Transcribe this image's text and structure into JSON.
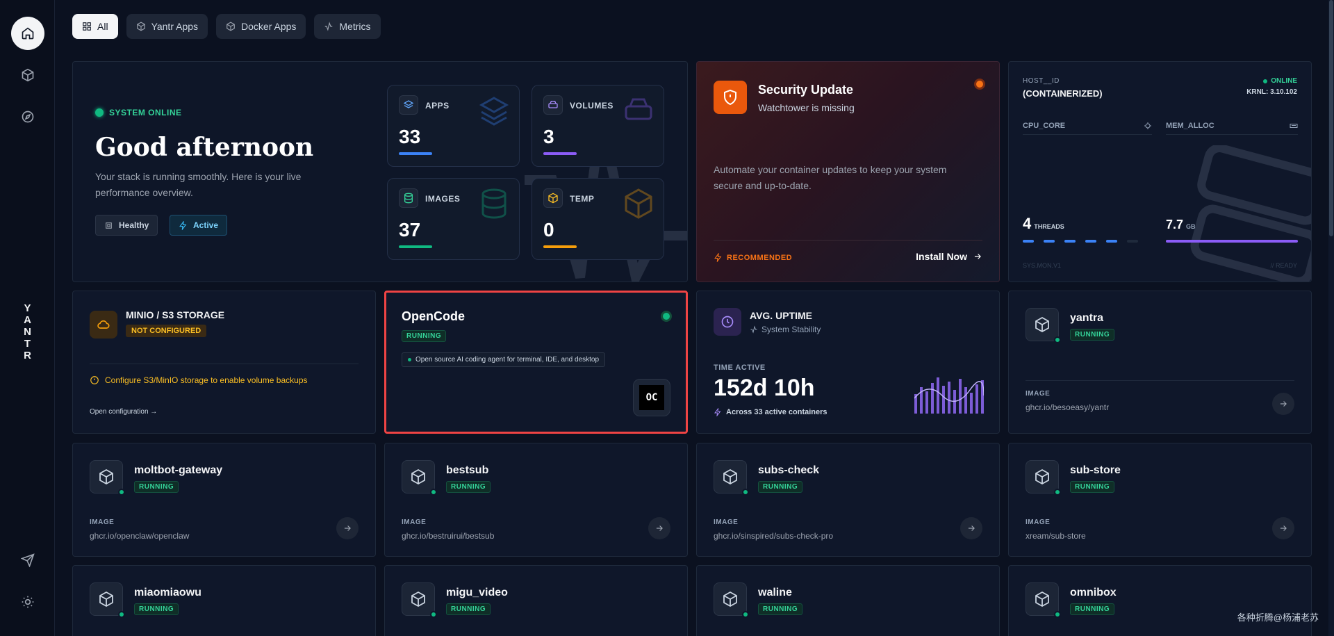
{
  "sidebar": {
    "items": [
      {
        "name": "home-icon"
      },
      {
        "name": "box-icon"
      },
      {
        "name": "compass-icon"
      },
      {
        "name": "send-icon"
      },
      {
        "name": "sun-icon"
      }
    ],
    "brand_letters": [
      "Y",
      "A",
      "N",
      "T",
      "R"
    ]
  },
  "tabs": [
    {
      "label": "All",
      "icon": "grid-icon",
      "active": true
    },
    {
      "label": "Yantr Apps",
      "icon": "box-icon"
    },
    {
      "label": "Docker Apps",
      "icon": "box-icon"
    },
    {
      "label": "Metrics",
      "icon": "activity-icon"
    }
  ],
  "hero": {
    "status": "SYSTEM ONLINE",
    "greeting": "Good afternoon",
    "subtitle_line1": "Your stack is running smoothly. Here is your live",
    "subtitle_line2": "performance overview.",
    "badge_healthy": "Healthy",
    "badge_active": "Active",
    "stats": [
      {
        "label": "APPS",
        "value": "33",
        "color": "#3b82f6"
      },
      {
        "label": "VOLUMES",
        "value": "3",
        "color": "#8b5cf6"
      },
      {
        "label": "IMAGES",
        "value": "37",
        "color": "#10b981"
      },
      {
        "label": "TEMP",
        "value": "0",
        "color": "#f59e0b"
      }
    ]
  },
  "security": {
    "title": "Security Update",
    "subtitle": "Watchtower is missing",
    "description_line1": "Automate your container updates to keep your system",
    "description_line2": "secure and up-to-date.",
    "recommended": "RECOMMENDED",
    "install": "Install Now"
  },
  "host": {
    "id_label": "HOST__ID",
    "id_value": "(CONTAINERIZED)",
    "status": "ONLINE",
    "kernel": "KRNL: 3.10.102",
    "cpu_label": "CPU_CORE",
    "mem_label": "MEM_ALLOC",
    "threads_value": "4",
    "threads_label": "THREADS",
    "mem_value": "7.7",
    "mem_unit": "GB",
    "footer_left": "SYS.MON.V1",
    "footer_right": "// READY"
  },
  "minio": {
    "title": "MINIO / S3 STORAGE",
    "badge": "NOT CONFIGURED",
    "warning": "Configure S3/MinIO storage to enable volume backups",
    "link": "Open configuration →"
  },
  "opencode": {
    "title": "OpenCode",
    "badge": "RUNNING",
    "description": "Open source AI coding agent for terminal, IDE, and desktop",
    "logo_text": "OC"
  },
  "uptime": {
    "title": "AVG. UPTIME",
    "subtitle": "System Stability",
    "label": "TIME ACTIVE",
    "value": "152d 10h",
    "footer": "Across 33 active containers"
  },
  "apps": [
    {
      "name": "yantra",
      "status": "RUNNING",
      "image_label": "IMAGE",
      "image": "ghcr.io/besoeasy/yantr"
    },
    {
      "name": "moltbot-gateway",
      "status": "RUNNING",
      "image_label": "IMAGE",
      "image": "ghcr.io/openclaw/openclaw"
    },
    {
      "name": "bestsub",
      "status": "RUNNING",
      "image_label": "IMAGE",
      "image": "ghcr.io/bestruirui/bestsub"
    },
    {
      "name": "subs-check",
      "status": "RUNNING",
      "image_label": "IMAGE",
      "image": "ghcr.io/sinspired/subs-check-pro"
    },
    {
      "name": "sub-store",
      "status": "RUNNING",
      "image_label": "IMAGE",
      "image": "xream/sub-store"
    },
    {
      "name": "miaomiaowu",
      "status": "RUNNING"
    },
    {
      "name": "migu_video",
      "status": "RUNNING"
    },
    {
      "name": "waline",
      "status": "RUNNING"
    },
    {
      "name": "omnibox",
      "status": "RUNNING"
    }
  ],
  "watermark": "各种折腾@杨浦老苏",
  "colors": {
    "background": "#0b1120",
    "card": "#0f172a",
    "accent_green": "#10b981",
    "accent_orange": "#f97316",
    "accent_purple": "#8b5cf6",
    "highlight_border": "#ef4444"
  }
}
